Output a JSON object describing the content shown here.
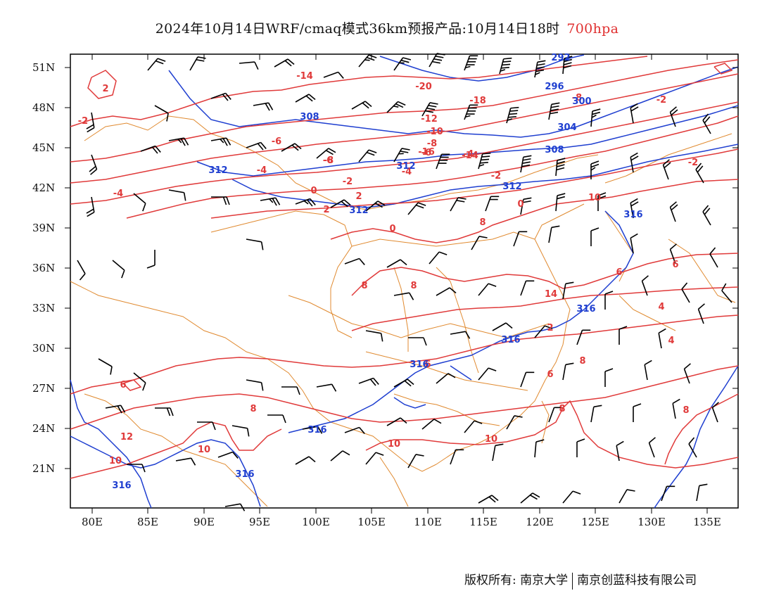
{
  "title": {
    "main": "2024年10月14日WRF/cmaq模式36km预报产品:10月14日18时",
    "level": "700hpa"
  },
  "y_axis_labels": [
    "51N",
    "48N",
    "45N",
    "42N",
    "39N",
    "36N",
    "33N",
    "30N",
    "27N",
    "24N",
    "21N"
  ],
  "x_axis_labels": [
    "80E",
    "85E",
    "90E",
    "95E",
    "100E",
    "105E",
    "110E",
    "115E",
    "120E",
    "125E",
    "130E",
    "135E"
  ],
  "temperature_labels": [
    "2",
    "-2",
    "-14",
    "-20",
    "-18",
    "-8",
    "-2",
    "-6",
    "-8",
    "-16",
    "-14",
    "-12",
    "-10",
    "-8",
    "-6",
    "-4",
    "-2",
    "0",
    "2",
    "-4",
    "-6",
    "-2",
    "-4",
    "0",
    "2",
    "-4",
    "0",
    "8",
    "8",
    "14",
    "6",
    "6",
    "4",
    "2",
    "4",
    "6",
    "6",
    "8",
    "8",
    "6",
    "8",
    "8",
    "8",
    "10",
    "10",
    "10",
    "12",
    "10",
    "10",
    "-2",
    "0"
  ],
  "height_labels": [
    "292",
    "296",
    "300",
    "304",
    "308",
    "308",
    "312",
    "312",
    "312",
    "312",
    "316",
    "316",
    "316",
    "316",
    "316",
    "316",
    "316"
  ],
  "footer": {
    "copyright": "版权所有: 南京大学",
    "company": "南京创蓝科技有限公司"
  },
  "colors": {
    "temperature": "#e03a3a",
    "height": "#1f3fd0",
    "border": "#e08a30",
    "wind": "#000000"
  }
}
